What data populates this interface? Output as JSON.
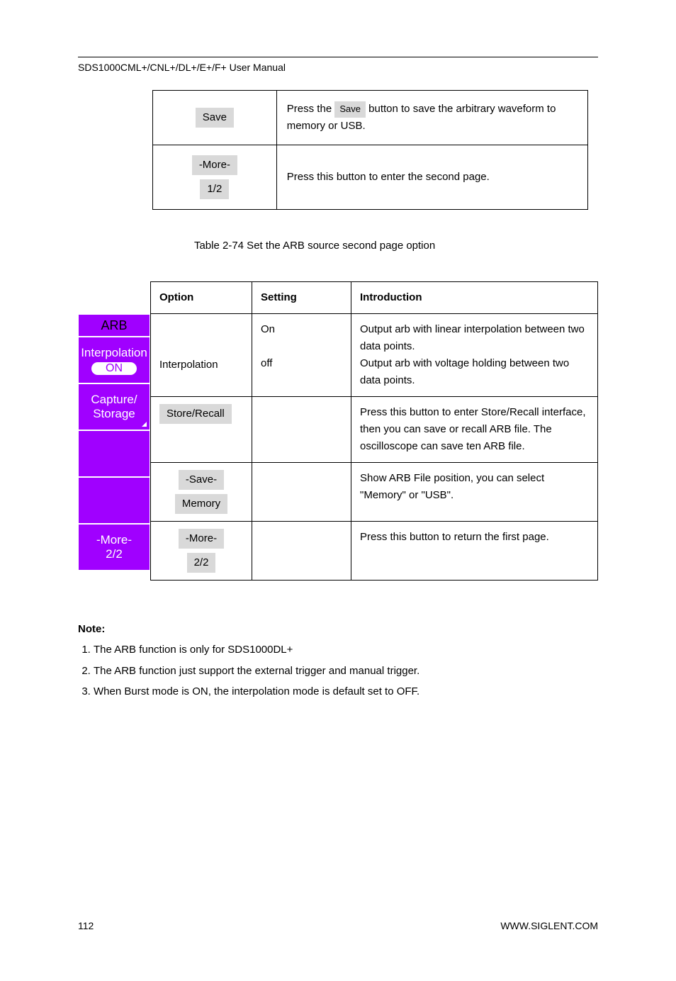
{
  "header": {
    "text": "SDS1000CML+/CNL+/DL+/E+/F+ User Manual"
  },
  "top_table": {
    "rows": [
      {
        "button_label": "Save",
        "desc_prefix": "Press the ",
        "desc_button": "Save ",
        "desc_suffix": " button to save the arbitrary waveform to memory or USB."
      },
      {
        "line1": "-More-",
        "line2": "1/2",
        "desc": "Press this button to enter the second page."
      }
    ]
  },
  "fig_caption": {
    "text": "Table 2-74 Set the ARB source second page option",
    "prefix_spacer": ""
  },
  "side_menu": {
    "title": "ARB",
    "interp": {
      "label": "Interpolation",
      "value": "ON"
    },
    "capture": {
      "line1": "Capture/",
      "line2": "Storage"
    },
    "more": {
      "line1": "-More-",
      "line2": "2/2"
    }
  },
  "big_table": {
    "headers": {
      "c1": "Option",
      "c2": "Setting",
      "c3": "Introduction"
    },
    "rows": [
      {
        "c1": "Interpolation",
        "c2_html": "On<br><br>off",
        "c3_html": "Output arb with linear interpolation between two data points.<br>Output arb with voltage holding between two data points."
      },
      {
        "c1_is_button": true,
        "c1_button": "Store/Recall",
        "c2_html": "",
        "c3_html": "Press this button to enter Store/Recall interface, then you can save or recall ARB file. The oscilloscope can save ten ARB file."
      },
      {
        "c1_stack": [
          "-Save-",
          "Memory"
        ],
        "c2_html": "",
        "c3_html": "Show ARB File position, you can select \"Memory\" or \"USB\"."
      },
      {
        "c1_stack": [
          "-More-",
          "2/2"
        ],
        "c2_html": "",
        "c3_html": "Press this button to return the first page."
      }
    ]
  },
  "note": {
    "title": "Note:",
    "items": [
      "The ARB function is only for SDS1000DL+",
      "The ARB function just support the external trigger and manual trigger.",
      "When Burst mode is ON, the interpolation mode is default set to OFF."
    ]
  },
  "footer": {
    "page": "112",
    "right": "WWW.SIGLENT.COM"
  }
}
